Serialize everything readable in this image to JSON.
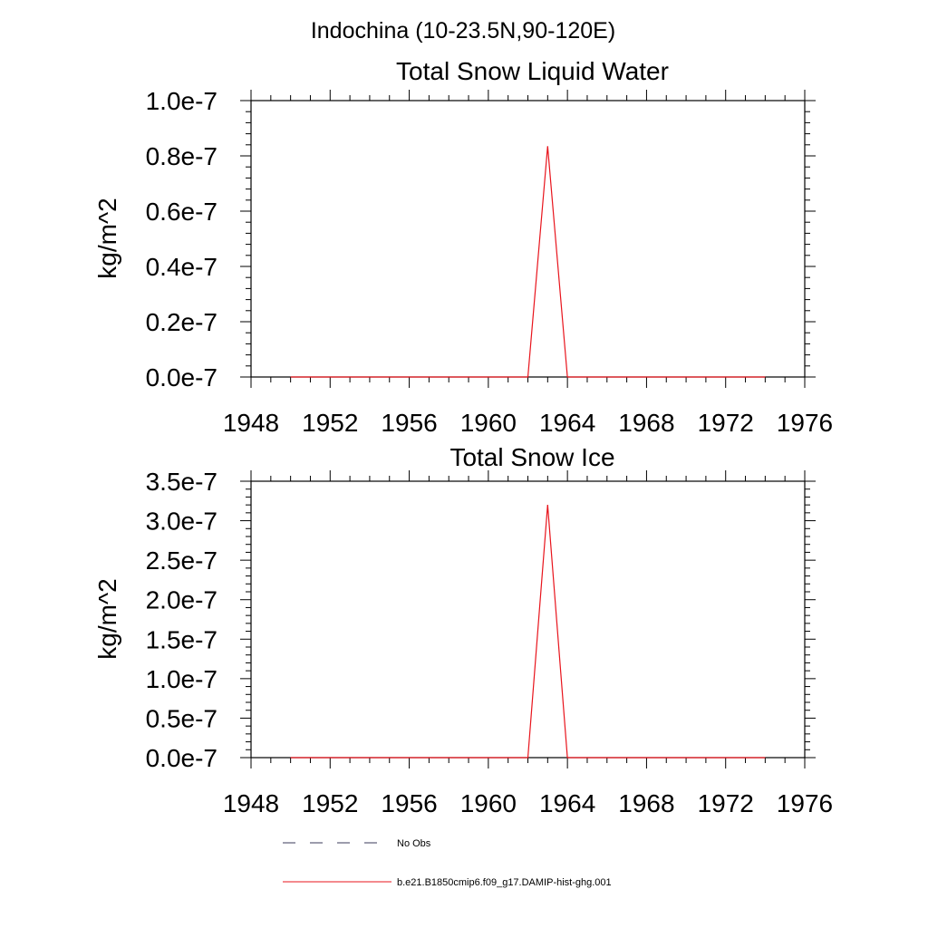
{
  "figure": {
    "suptitle": "Indochina (10-23.5N,90-120E)"
  },
  "chart_data": [
    {
      "type": "line",
      "title": "Total Snow Liquid Water",
      "xlabel": "",
      "ylabel": "kg/m^2",
      "xlim": [
        1948,
        1976
      ],
      "ylim": [
        0,
        1e-07
      ],
      "xticks": [
        "1948",
        "1952",
        "1956",
        "1960",
        "1964",
        "1968",
        "1972",
        "1976"
      ],
      "yticks": [
        "0.0e-7",
        "0.2e-7",
        "0.4e-7",
        "0.6e-7",
        "0.8e-7",
        "1.0e-7"
      ],
      "grid": false,
      "series": [
        {
          "name": "b.e21.B1850cmip6.f09_g17.DAMIP-hist-ghg.001",
          "color": "#e8141c",
          "x": [
            1950,
            1962,
            1963,
            1964,
            1974
          ],
          "y": [
            0,
            0,
            8.35e-08,
            0,
            0
          ]
        }
      ]
    },
    {
      "type": "line",
      "title": "Total Snow Ice",
      "xlabel": "",
      "ylabel": "kg/m^2",
      "xlim": [
        1948,
        1976
      ],
      "ylim": [
        0,
        3.5e-07
      ],
      "xticks": [
        "1948",
        "1952",
        "1956",
        "1960",
        "1964",
        "1968",
        "1972",
        "1976"
      ],
      "yticks": [
        "0.0e-7",
        "0.5e-7",
        "1.0e-7",
        "1.5e-7",
        "2.0e-7",
        "2.5e-7",
        "3.0e-7",
        "3.5e-7"
      ],
      "grid": false,
      "series": [
        {
          "name": "b.e21.B1850cmip6.f09_g17.DAMIP-hist-ghg.001",
          "color": "#e8141c",
          "x": [
            1950,
            1962,
            1963,
            1964,
            1974
          ],
          "y": [
            0,
            0,
            3.2e-07,
            0,
            0
          ]
        }
      ]
    }
  ],
  "legend": {
    "placement": "bottom",
    "entries": [
      {
        "label": "No Obs",
        "style": "dashed",
        "color": "#3a3a5a"
      },
      {
        "label": "b.e21.B1850cmip6.f09_g17.DAMIP-hist-ghg.001",
        "style": "solid",
        "color": "#e8141c"
      }
    ]
  }
}
